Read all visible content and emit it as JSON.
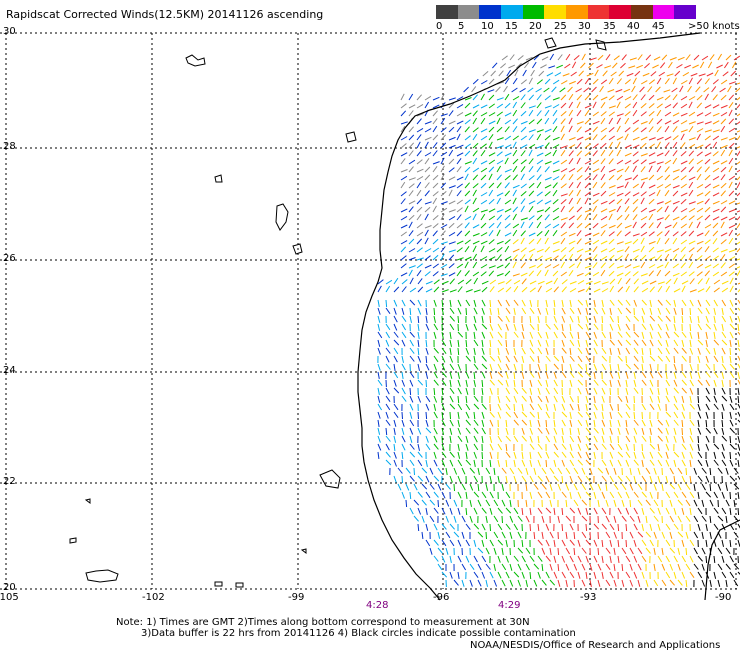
{
  "title": "Rapidscat Corrected Winds(12.5KM) 20141126 ascending",
  "colorbar": {
    "colors": [
      "#404040",
      "#8c8c8c",
      "#0033cc",
      "#00aaee",
      "#00bb00",
      "#ffdd00",
      "#ff9900",
      "#ee3333",
      "#dd0033",
      "#773311",
      "#ee00ee",
      "#6600cc"
    ],
    "labels": [
      "0",
      "5",
      "10",
      "15",
      "20",
      "25",
      "30",
      "35",
      "40",
      "45",
      ">50 knots"
    ]
  },
  "lat_labels": [
    "30",
    "28",
    "26",
    "24",
    "22",
    "20"
  ],
  "lon_labels": [
    "-105",
    "-102",
    "-99",
    "-96",
    "-93",
    "-90"
  ],
  "times": [
    "4:28",
    "4:29"
  ],
  "notes": {
    "line1": "Note: 1) Times are GMT 2)Times along bottom correspond to measurement at 30N",
    "line2": "3)Data buffer is 22 hrs from 20141126 4) Black circles indicate possible contamination",
    "line3": "NOAA/NESDIS/Office of Research and Applications"
  }
}
